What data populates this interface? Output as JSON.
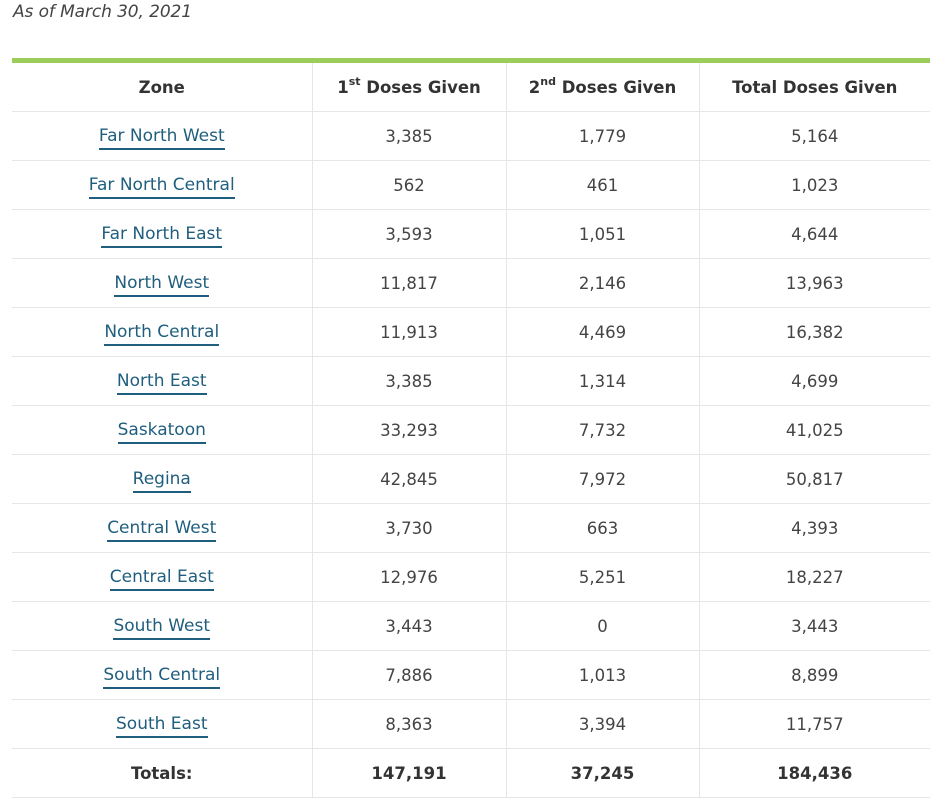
{
  "header": {
    "as_of": "As of March 30, 2021"
  },
  "table": {
    "columns": {
      "zone": "Zone",
      "first_num": "1",
      "first_sup": "st",
      "first_rest": " Doses Given",
      "second_num": "2",
      "second_sup": "nd",
      "second_rest": " Doses Given",
      "total": "Total Doses Given"
    },
    "rows": [
      {
        "zone": "Far North West",
        "first": "3,385",
        "second": "1,779",
        "total": "5,164"
      },
      {
        "zone": "Far North Central",
        "first": "562",
        "second": "461",
        "total": "1,023"
      },
      {
        "zone": "Far North East",
        "first": "3,593",
        "second": "1,051",
        "total": "4,644"
      },
      {
        "zone": "North West",
        "first": "11,817",
        "second": "2,146",
        "total": "13,963"
      },
      {
        "zone": "North Central",
        "first": "11,913",
        "second": "4,469",
        "total": "16,382"
      },
      {
        "zone": "North East",
        "first": "3,385",
        "second": "1,314",
        "total": "4,699"
      },
      {
        "zone": "Saskatoon",
        "first": "33,293",
        "second": "7,732",
        "total": "41,025"
      },
      {
        "zone": "Regina",
        "first": "42,845",
        "second": "7,972",
        "total": "50,817"
      },
      {
        "zone": "Central West",
        "first": "3,730",
        "second": "663",
        "total": "4,393"
      },
      {
        "zone": "Central East",
        "first": "12,976",
        "second": "5,251",
        "total": "18,227"
      },
      {
        "zone": "South West",
        "first": "3,443",
        "second": "0",
        "total": "3,443"
      },
      {
        "zone": "South Central",
        "first": "7,886",
        "second": "1,013",
        "total": "8,899"
      },
      {
        "zone": "South East",
        "first": "8,363",
        "second": "3,394",
        "total": "11,757"
      }
    ],
    "totals": {
      "label": "Totals:",
      "first": "147,191",
      "second": "37,245",
      "total": "184,436"
    }
  },
  "colors": {
    "accent_rule": "#9ccc5a",
    "link": "#1f5e7e"
  }
}
